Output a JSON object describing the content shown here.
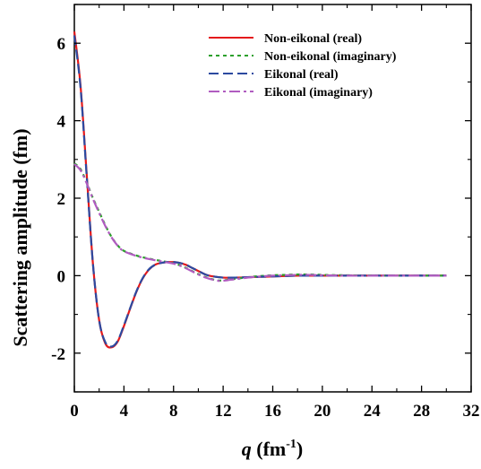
{
  "chart_data": {
    "type": "line",
    "title": "",
    "xlabel": {
      "variable": "q",
      "unit_prefix": " (fm",
      "unit_exp": "-1",
      "unit_suffix": ")"
    },
    "ylabel": "Scattering  amplitude (fm)",
    "xlim": [
      0,
      32
    ],
    "ylim": [
      -3,
      7
    ],
    "x_ticks": [
      0,
      4,
      8,
      12,
      16,
      20,
      24,
      28,
      32
    ],
    "y_ticks": [
      -2,
      0,
      2,
      4,
      6
    ],
    "y_tick_labels": [
      "-2",
      "0",
      "2",
      "4",
      "6"
    ],
    "grid": false,
    "legend_position": "top-right",
    "series": [
      {
        "name": "Non-eikonal (real)",
        "color": "#e41a1c",
        "dash": "solid",
        "x": [
          0.0,
          0.5,
          1.0,
          1.5,
          2.0,
          2.5,
          3.0,
          3.5,
          4.0,
          4.5,
          5.0,
          5.5,
          6.0,
          6.5,
          7.0,
          7.5,
          8.0,
          8.5,
          9.0,
          9.5,
          10.0,
          10.5,
          11.0,
          12.0,
          13.0,
          14.0,
          15.0,
          16.0,
          17.0,
          18.0,
          20.0,
          22.0,
          25.0,
          28.0,
          30.0
        ],
        "y": [
          6.3,
          4.9,
          2.6,
          0.3,
          -1.15,
          -1.75,
          -1.85,
          -1.7,
          -1.3,
          -0.85,
          -0.42,
          -0.08,
          0.15,
          0.28,
          0.33,
          0.35,
          0.35,
          0.33,
          0.28,
          0.2,
          0.12,
          0.04,
          -0.01,
          -0.05,
          -0.05,
          -0.04,
          -0.03,
          -0.02,
          -0.01,
          0.0,
          0.0,
          0.0,
          0.0,
          0.0,
          0.0
        ]
      },
      {
        "name": "Non-eikonal (imaginary)",
        "color": "#2ca02c",
        "dash": "dotted",
        "x": [
          0.0,
          0.5,
          1.0,
          1.5,
          2.0,
          2.5,
          3.0,
          3.5,
          4.0,
          5.0,
          6.0,
          7.0,
          8.0,
          8.5,
          9.0,
          9.5,
          10.0,
          10.5,
          11.0,
          11.5,
          12.0,
          13.0,
          14.0,
          15.0,
          16.0,
          17.0,
          18.0,
          19.0,
          20.0,
          22.0,
          25.0,
          28.0,
          30.0
        ],
        "y": [
          2.9,
          2.75,
          2.4,
          2.0,
          1.65,
          1.3,
          1.0,
          0.78,
          0.64,
          0.52,
          0.44,
          0.38,
          0.32,
          0.27,
          0.2,
          0.12,
          0.04,
          -0.03,
          -0.08,
          -0.12,
          -0.12,
          -0.08,
          -0.04,
          -0.01,
          0.01,
          0.02,
          0.03,
          0.03,
          0.02,
          0.01,
          0.0,
          0.0,
          0.0
        ]
      },
      {
        "name": "Eikonal (real)",
        "color": "#2c4aa0",
        "dash": "dashed",
        "x": [
          0.0,
          0.5,
          1.0,
          1.5,
          2.0,
          2.5,
          3.0,
          3.5,
          4.0,
          4.5,
          5.0,
          5.5,
          6.0,
          6.5,
          7.0,
          7.5,
          8.0,
          8.5,
          9.0,
          9.5,
          10.0,
          10.5,
          11.0,
          12.0,
          13.0,
          14.0,
          15.0,
          16.0,
          17.0,
          18.0,
          20.0,
          22.0,
          25.0,
          28.0,
          30.0
        ],
        "y": [
          6.2,
          4.85,
          2.55,
          0.3,
          -1.15,
          -1.72,
          -1.83,
          -1.68,
          -1.28,
          -0.84,
          -0.41,
          -0.07,
          0.16,
          0.28,
          0.33,
          0.35,
          0.35,
          0.33,
          0.28,
          0.2,
          0.12,
          0.04,
          -0.01,
          -0.05,
          -0.05,
          -0.04,
          -0.03,
          -0.02,
          -0.01,
          0.0,
          0.0,
          0.0,
          0.0,
          0.0,
          0.0
        ]
      },
      {
        "name": "Eikonal (imaginary)",
        "color": "#b05cc0",
        "dash": "dashdot",
        "x": [
          0.0,
          0.5,
          1.0,
          1.5,
          2.0,
          2.5,
          3.0,
          3.5,
          4.0,
          5.0,
          6.0,
          7.0,
          8.0,
          8.5,
          9.0,
          9.5,
          10.0,
          10.5,
          11.0,
          11.5,
          12.0,
          13.0,
          14.0,
          15.0,
          16.0,
          17.0,
          18.0,
          19.0,
          20.0,
          22.0,
          25.0,
          28.0,
          30.0
        ],
        "y": [
          2.88,
          2.72,
          2.38,
          1.98,
          1.62,
          1.28,
          0.99,
          0.77,
          0.63,
          0.51,
          0.43,
          0.37,
          0.31,
          0.26,
          0.19,
          0.11,
          0.03,
          -0.04,
          -0.09,
          -0.13,
          -0.13,
          -0.09,
          -0.05,
          -0.02,
          0.0,
          0.01,
          0.02,
          0.02,
          0.01,
          0.0,
          0.0,
          0.0,
          0.0
        ]
      }
    ]
  }
}
